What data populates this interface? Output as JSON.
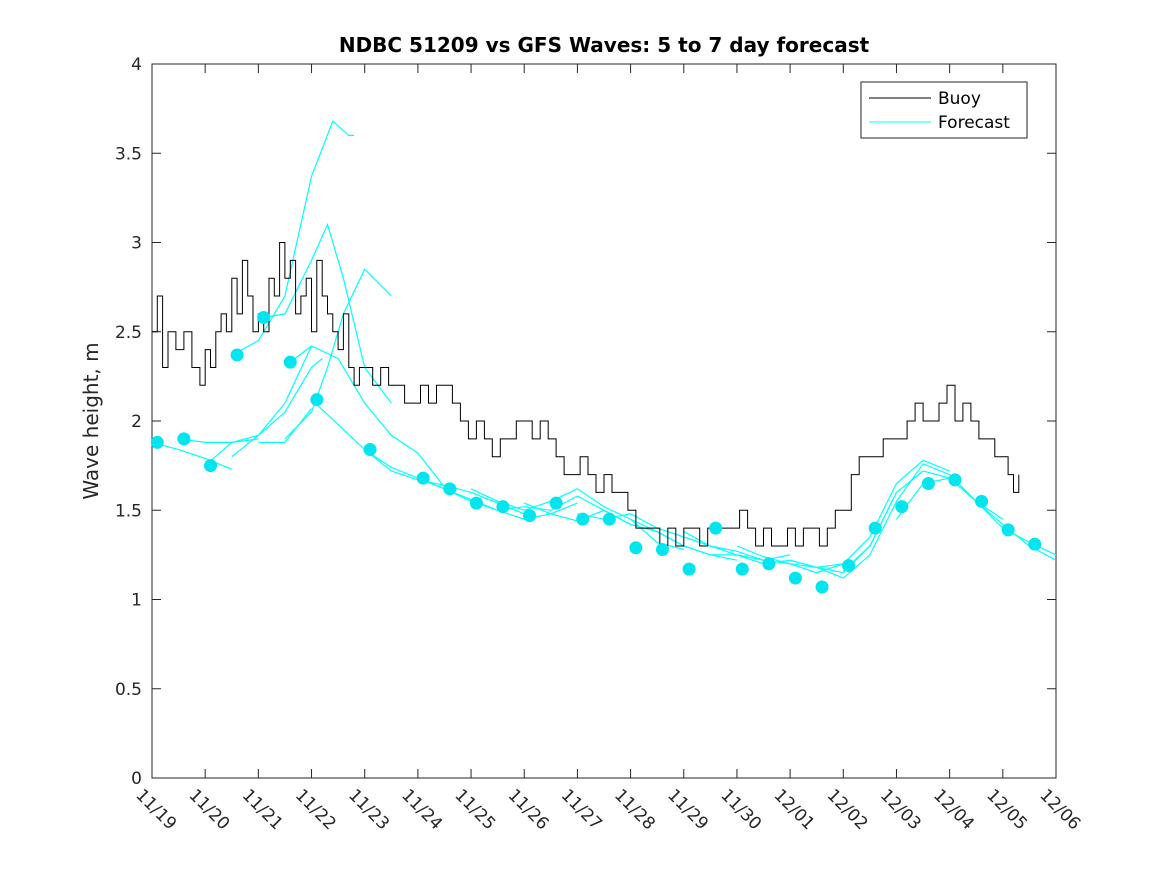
{
  "chart_data": {
    "type": "line",
    "title": "NDBC 51209 vs GFS Waves: 5 to 7 day forecast",
    "xlabel": "",
    "ylabel": "Wave height, m",
    "ylim": [
      0,
      4
    ],
    "yticks": [
      "0",
      "0.5",
      "1",
      "1.5",
      "2",
      "2.5",
      "3",
      "3.5",
      "4"
    ],
    "xlim_days": [
      0,
      17
    ],
    "xtick_labels": [
      "11/19",
      "11/20",
      "11/21",
      "11/22",
      "11/23",
      "11/24",
      "11/25",
      "11/26",
      "11/27",
      "11/28",
      "11/29",
      "11/30",
      "12/01",
      "12/02",
      "12/03",
      "12/04",
      "12/05",
      "12/06"
    ],
    "legend": {
      "position": "top-right",
      "entries": [
        "Buoy",
        "Forecast"
      ]
    },
    "colors": {
      "buoy": "#000000",
      "forecast": "#00FFFF",
      "forecast_marker": "#00E5EE",
      "axis": "#262626"
    },
    "buoy": {
      "name": "Buoy",
      "x": [
        0,
        0.1,
        0.2,
        0.3,
        0.45,
        0.6,
        0.75,
        0.9,
        1.0,
        1.1,
        1.2,
        1.3,
        1.4,
        1.5,
        1.6,
        1.7,
        1.8,
        1.9,
        2.0,
        2.1,
        2.2,
        2.3,
        2.4,
        2.5,
        2.6,
        2.7,
        2.8,
        2.9,
        3.0,
        3.1,
        3.2,
        3.3,
        3.4,
        3.5,
        3.6,
        3.7,
        3.8,
        3.9,
        4.0,
        4.15,
        4.3,
        4.45,
        4.6,
        4.75,
        4.9,
        5.05,
        5.2,
        5.35,
        5.5,
        5.65,
        5.8,
        5.95,
        6.1,
        6.25,
        6.4,
        6.55,
        6.7,
        6.85,
        7.0,
        7.15,
        7.3,
        7.45,
        7.6,
        7.75,
        7.9,
        8.05,
        8.2,
        8.35,
        8.5,
        8.65,
        8.8,
        8.95,
        9.1,
        9.25,
        9.4,
        9.55,
        9.7,
        9.85,
        10.0,
        10.15,
        10.3,
        10.45,
        10.6,
        10.75,
        10.9,
        11.05,
        11.2,
        11.35,
        11.5,
        11.65,
        11.8,
        11.95,
        12.1,
        12.25,
        12.4,
        12.55,
        12.7,
        12.85,
        13.0,
        13.15,
        13.3,
        13.45,
        13.6,
        13.75,
        13.9,
        14.05,
        14.2,
        14.35,
        14.5,
        14.65,
        14.8,
        14.95,
        15.1,
        15.25,
        15.4,
        15.55,
        15.7,
        15.85,
        16.0,
        16.1,
        16.2,
        16.3
      ],
      "values": [
        2.5,
        2.7,
        2.3,
        2.5,
        2.4,
        2.5,
        2.3,
        2.2,
        2.4,
        2.3,
        2.5,
        2.6,
        2.5,
        2.8,
        2.6,
        2.9,
        2.7,
        2.5,
        2.6,
        2.5,
        2.8,
        2.7,
        3.0,
        2.8,
        2.9,
        2.6,
        2.7,
        2.8,
        2.5,
        2.9,
        2.7,
        2.6,
        2.5,
        2.4,
        2.6,
        2.3,
        2.2,
        2.3,
        2.3,
        2.2,
        2.3,
        2.2,
        2.2,
        2.1,
        2.1,
        2.2,
        2.1,
        2.2,
        2.2,
        2.1,
        2.0,
        1.9,
        2.0,
        1.9,
        1.8,
        1.9,
        1.9,
        2.0,
        2.0,
        1.9,
        2.0,
        1.9,
        1.8,
        1.7,
        1.7,
        1.8,
        1.7,
        1.6,
        1.7,
        1.6,
        1.6,
        1.5,
        1.4,
        1.4,
        1.4,
        1.3,
        1.4,
        1.3,
        1.4,
        1.4,
        1.3,
        1.4,
        1.4,
        1.4,
        1.4,
        1.5,
        1.4,
        1.3,
        1.4,
        1.3,
        1.3,
        1.4,
        1.3,
        1.4,
        1.4,
        1.3,
        1.4,
        1.5,
        1.5,
        1.7,
        1.8,
        1.8,
        1.8,
        1.9,
        1.9,
        1.9,
        2.0,
        2.1,
        2.0,
        2.0,
        2.1,
        2.2,
        2.0,
        2.1,
        2.0,
        1.9,
        1.9,
        1.8,
        1.8,
        1.7,
        1.6,
        1.7
      ]
    },
    "forecast_lines": [
      {
        "name": "Forecast",
        "x": [
          0,
          0.5,
          1.0,
          1.5
        ],
        "values": [
          1.88,
          1.84,
          1.79,
          1.73
        ]
      },
      {
        "name": "Forecast",
        "x": [
          0.5,
          1.0,
          1.5,
          2.0
        ],
        "values": [
          1.9,
          1.88,
          1.88,
          1.9
        ]
      },
      {
        "name": "Forecast",
        "x": [
          1.0,
          1.5,
          2.0,
          2.5,
          3.0,
          3.2
        ],
        "values": [
          1.75,
          1.88,
          1.92,
          2.05,
          2.3,
          2.35
        ]
      },
      {
        "name": "Forecast",
        "x": [
          1.5,
          2.0,
          2.5,
          3.0
        ],
        "values": [
          1.8,
          1.92,
          2.1,
          2.42
        ]
      },
      {
        "name": "Forecast",
        "x": [
          2.0,
          2.5,
          3.0
        ],
        "values": [
          1.88,
          1.88,
          2.07
        ]
      },
      {
        "name": "Forecast",
        "x": [
          2.5,
          3.0,
          3.3,
          3.6,
          4.0,
          4.5
        ],
        "values": [
          1.9,
          2.05,
          2.3,
          2.6,
          2.85,
          2.7
        ]
      },
      {
        "name": "Forecast",
        "x": [
          1.5,
          2.0,
          2.5,
          3.0,
          3.4,
          3.7,
          3.8
        ],
        "values": [
          2.37,
          2.45,
          2.7,
          3.37,
          3.68,
          3.6,
          3.6
        ]
      },
      {
        "name": "Forecast",
        "x": [
          2.1,
          2.5,
          3.0,
          3.3,
          3.6,
          4.0,
          4.5
        ],
        "values": [
          2.58,
          2.6,
          2.9,
          3.1,
          2.8,
          2.3,
          2.1
        ]
      },
      {
        "name": "Forecast",
        "x": [
          2.6,
          3.0,
          3.5,
          4.0,
          4.5,
          5.0,
          5.5
        ],
        "values": [
          2.33,
          2.42,
          2.35,
          2.1,
          1.92,
          1.82,
          1.63
        ]
      },
      {
        "name": "Forecast",
        "x": [
          3.0,
          3.5,
          4.0,
          4.5,
          5.0,
          5.5,
          6.0,
          6.5,
          7.0
        ],
        "values": [
          2.12,
          1.98,
          1.84,
          1.72,
          1.67,
          1.64,
          1.6,
          1.54,
          1.48
        ]
      },
      {
        "name": "Forecast",
        "x": [
          4.0,
          4.5,
          5.0,
          5.5,
          6.0,
          6.5,
          7.0,
          7.5,
          8.0
        ],
        "values": [
          1.84,
          1.74,
          1.68,
          1.62,
          1.55,
          1.5,
          1.45,
          1.48,
          1.54
        ]
      },
      {
        "name": "Forecast",
        "x": [
          5.0,
          5.5,
          6.0,
          6.5,
          7.0,
          7.5,
          8.0,
          8.5,
          9.0
        ],
        "values": [
          1.68,
          1.62,
          1.56,
          1.5,
          1.52,
          1.5,
          1.58,
          1.5,
          1.42
        ]
      },
      {
        "name": "Forecast",
        "x": [
          6.0,
          6.5,
          7.0,
          7.5,
          8.0,
          8.5,
          9.0,
          9.5,
          10.0
        ],
        "values": [
          1.62,
          1.55,
          1.5,
          1.55,
          1.62,
          1.52,
          1.45,
          1.32,
          1.28
        ]
      },
      {
        "name": "Forecast",
        "x": [
          7.0,
          7.5,
          8.0,
          8.5,
          9.0,
          9.5,
          10.0,
          10.5,
          11.0
        ],
        "values": [
          1.54,
          1.48,
          1.44,
          1.5,
          1.42,
          1.38,
          1.3,
          1.25,
          1.22
        ]
      },
      {
        "name": "Forecast",
        "x": [
          8.0,
          8.5,
          9.0,
          9.5,
          10.0,
          10.5,
          11.0,
          11.5,
          12.0
        ],
        "values": [
          1.48,
          1.45,
          1.48,
          1.4,
          1.35,
          1.3,
          1.27,
          1.22,
          1.25
        ]
      },
      {
        "name": "Forecast",
        "x": [
          9.0,
          9.5,
          10.0,
          10.5,
          11.0,
          11.5,
          12.0,
          12.5,
          13.0
        ],
        "values": [
          1.45,
          1.38,
          1.3,
          1.25,
          1.25,
          1.22,
          1.2,
          1.18,
          1.2
        ]
      },
      {
        "name": "Forecast",
        "x": [
          10.0,
          10.5,
          11.0,
          11.5,
          12.0,
          12.5,
          13.0,
          13.5,
          14.0
        ],
        "values": [
          1.38,
          1.3,
          1.25,
          1.2,
          1.22,
          1.18,
          1.15,
          1.3,
          1.6
        ]
      },
      {
        "name": "Forecast",
        "x": [
          11.0,
          11.5,
          12.0,
          12.5,
          13.0,
          13.5,
          14.0,
          14.5,
          15.0
        ],
        "values": [
          1.3,
          1.24,
          1.2,
          1.15,
          1.2,
          1.35,
          1.65,
          1.78,
          1.72
        ]
      },
      {
        "name": "Forecast",
        "x": [
          12.0,
          12.5,
          13.0,
          13.5,
          14.0,
          14.5,
          15.0,
          15.5,
          16.0
        ],
        "values": [
          1.22,
          1.18,
          1.12,
          1.25,
          1.55,
          1.76,
          1.7,
          1.55,
          1.45
        ]
      },
      {
        "name": "Forecast",
        "x": [
          13.0,
          13.5,
          14.0,
          14.5,
          15.0,
          15.5,
          16.0,
          16.5,
          17.0
        ],
        "values": [
          1.16,
          1.3,
          1.6,
          1.72,
          1.68,
          1.55,
          1.4,
          1.32,
          1.25
        ]
      },
      {
        "name": "Forecast",
        "x": [
          14.0,
          14.5,
          15.0,
          15.5,
          16.0,
          16.5,
          17.0
        ],
        "values": [
          1.45,
          1.65,
          1.68,
          1.55,
          1.42,
          1.3,
          1.22
        ]
      }
    ],
    "forecast_points": {
      "x": [
        0.1,
        0.6,
        1.1,
        1.6,
        2.1,
        2.6,
        3.1,
        4.1,
        5.1,
        5.6,
        6.1,
        6.6,
        7.1,
        7.6,
        8.1,
        8.6,
        9.1,
        9.6,
        10.1,
        10.6,
        11.1,
        11.6,
        12.1,
        12.6,
        13.1,
        13.6,
        14.1,
        14.6,
        15.1,
        15.6,
        16.1,
        16.6
      ],
      "values": [
        1.88,
        1.9,
        1.75,
        2.37,
        2.58,
        2.33,
        2.12,
        1.84,
        1.68,
        1.62,
        1.54,
        1.52,
        1.47,
        1.54,
        1.45,
        1.45,
        1.29,
        1.28,
        1.17,
        1.4,
        1.17,
        1.2,
        1.12,
        1.07,
        1.19,
        1.4,
        1.52,
        1.65,
        1.67,
        1.55,
        1.39,
        1.31
      ]
    }
  }
}
